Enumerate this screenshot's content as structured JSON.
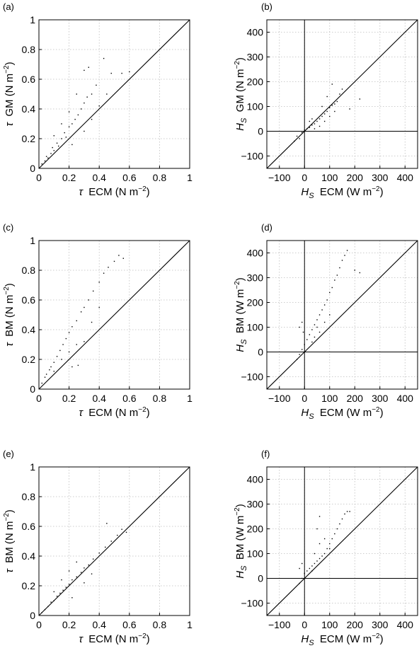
{
  "figure": {
    "panels": [
      "(a)",
      "(b)",
      "(c)",
      "(d)",
      "(e)",
      "(f)"
    ]
  },
  "chart_data": [
    {
      "panel": "(a)",
      "type": "scatter",
      "xlabel": "τ ECM (N m⁻²)",
      "ylabel": "τ GM (N m⁻²)",
      "xlim": [
        0,
        1
      ],
      "ylim": [
        0,
        1
      ],
      "xticks": [
        "0",
        "0.2",
        "0.4",
        "0.6",
        "0.8",
        "1"
      ],
      "yticks": [
        "0",
        "0.2",
        "0.4",
        "0.6",
        "0.8",
        "1"
      ],
      "grid": true,
      "reference_line": "1:1",
      "points": [
        [
          0.02,
          0.03
        ],
        [
          0.04,
          0.05
        ],
        [
          0.05,
          0.08
        ],
        [
          0.06,
          0.07
        ],
        [
          0.08,
          0.1
        ],
        [
          0.09,
          0.14
        ],
        [
          0.1,
          0.12
        ],
        [
          0.12,
          0.17
        ],
        [
          0.13,
          0.15
        ],
        [
          0.15,
          0.2
        ],
        [
          0.17,
          0.24
        ],
        [
          0.18,
          0.21
        ],
        [
          0.2,
          0.28
        ],
        [
          0.22,
          0.3
        ],
        [
          0.24,
          0.33
        ],
        [
          0.26,
          0.36
        ],
        [
          0.28,
          0.4
        ],
        [
          0.3,
          0.44
        ],
        [
          0.32,
          0.48
        ],
        [
          0.35,
          0.5
        ],
        [
          0.38,
          0.56
        ],
        [
          0.3,
          0.66
        ],
        [
          0.33,
          0.68
        ],
        [
          0.43,
          0.74
        ],
        [
          0.48,
          0.64
        ],
        [
          0.55,
          0.64
        ],
        [
          0.6,
          0.65
        ],
        [
          0.25,
          0.5
        ],
        [
          0.2,
          0.38
        ],
        [
          0.15,
          0.3
        ],
        [
          0.1,
          0.22
        ],
        [
          0.3,
          0.25
        ],
        [
          0.4,
          0.42
        ],
        [
          0.45,
          0.5
        ],
        [
          0.22,
          0.16
        ],
        [
          0.35,
          0.33
        ]
      ]
    },
    {
      "panel": "(b)",
      "type": "scatter",
      "xlabel": "H_S ECM (W m⁻²)",
      "ylabel": "H_S GM (N m⁻²)",
      "xlim": [
        -150,
        450
      ],
      "ylim": [
        -150,
        450
      ],
      "xticks": [
        "−100",
        "0",
        "100",
        "200",
        "300",
        "400"
      ],
      "yticks": [
        "−100",
        "0",
        "100",
        "200",
        "300",
        "400"
      ],
      "grid": true,
      "reference_line": "1:1",
      "points": [
        [
          -40,
          -40
        ],
        [
          -30,
          -20
        ],
        [
          -20,
          -30
        ],
        [
          -10,
          -5
        ],
        [
          0,
          5
        ],
        [
          10,
          10
        ],
        [
          20,
          15
        ],
        [
          30,
          25
        ],
        [
          40,
          30
        ],
        [
          50,
          40
        ],
        [
          60,
          50
        ],
        [
          70,
          60
        ],
        [
          80,
          70
        ],
        [
          90,
          80
        ],
        [
          100,
          95
        ],
        [
          110,
          105
        ],
        [
          120,
          110
        ],
        [
          130,
          120
        ],
        [
          140,
          150
        ],
        [
          110,
          190
        ],
        [
          150,
          170
        ],
        [
          220,
          130
        ],
        [
          180,
          90
        ],
        [
          60,
          20
        ],
        [
          40,
          10
        ],
        [
          80,
          40
        ],
        [
          100,
          60
        ],
        [
          30,
          50
        ],
        [
          20,
          40
        ],
        [
          70,
          100
        ],
        [
          90,
          140
        ],
        [
          120,
          80
        ]
      ]
    },
    {
      "panel": "(c)",
      "type": "scatter",
      "xlabel": "τ ECM (N m⁻²)",
      "ylabel": "τ BM (N m⁻²)",
      "xlim": [
        0,
        1
      ],
      "ylim": [
        0,
        1
      ],
      "xticks": [
        "0",
        "0.2",
        "0.4",
        "0.6",
        "0.8",
        "1"
      ],
      "yticks": [
        "0",
        "0.2",
        "0.4",
        "0.6",
        "0.8",
        "1"
      ],
      "grid": true,
      "reference_line": "1:1",
      "points": [
        [
          0.02,
          0.04
        ],
        [
          0.04,
          0.08
        ],
        [
          0.05,
          0.1
        ],
        [
          0.07,
          0.13
        ],
        [
          0.08,
          0.15
        ],
        [
          0.1,
          0.18
        ],
        [
          0.12,
          0.22
        ],
        [
          0.14,
          0.26
        ],
        [
          0.16,
          0.3
        ],
        [
          0.18,
          0.34
        ],
        [
          0.2,
          0.38
        ],
        [
          0.22,
          0.42
        ],
        [
          0.25,
          0.46
        ],
        [
          0.28,
          0.52
        ],
        [
          0.3,
          0.55
        ],
        [
          0.33,
          0.6
        ],
        [
          0.36,
          0.66
        ],
        [
          0.4,
          0.72
        ],
        [
          0.43,
          0.78
        ],
        [
          0.46,
          0.82
        ],
        [
          0.5,
          0.86
        ],
        [
          0.53,
          0.9
        ],
        [
          0.56,
          0.88
        ],
        [
          0.2,
          0.25
        ],
        [
          0.25,
          0.3
        ],
        [
          0.3,
          0.32
        ],
        [
          0.26,
          0.16
        ],
        [
          0.22,
          0.15
        ],
        [
          0.35,
          0.45
        ],
        [
          0.4,
          0.55
        ],
        [
          0.15,
          0.2
        ],
        [
          0.1,
          0.12
        ]
      ]
    },
    {
      "panel": "(d)",
      "type": "scatter",
      "xlabel": "H_S ECM (W m⁻²)",
      "ylabel": "H_S BM (W m⁻²)",
      "xlim": [
        -150,
        450
      ],
      "ylim": [
        -150,
        450
      ],
      "xticks": [
        "−100",
        "0",
        "100",
        "200",
        "300",
        "400"
      ],
      "yticks": [
        "−100",
        "0",
        "100",
        "200",
        "300",
        "400"
      ],
      "grid": true,
      "reference_line": "1:1",
      "points": [
        [
          -30,
          -30
        ],
        [
          -20,
          -10
        ],
        [
          -10,
          10
        ],
        [
          0,
          30
        ],
        [
          10,
          50
        ],
        [
          20,
          70
        ],
        [
          30,
          90
        ],
        [
          40,
          110
        ],
        [
          50,
          130
        ],
        [
          60,
          150
        ],
        [
          70,
          170
        ],
        [
          80,
          190
        ],
        [
          90,
          210
        ],
        [
          100,
          240
        ],
        [
          110,
          260
        ],
        [
          120,
          290
        ],
        [
          130,
          310
        ],
        [
          140,
          340
        ],
        [
          150,
          370
        ],
        [
          160,
          390
        ],
        [
          170,
          410
        ],
        [
          200,
          330
        ],
        [
          220,
          320
        ],
        [
          -10,
          120
        ],
        [
          -20,
          100
        ],
        [
          -5,
          80
        ],
        [
          40,
          60
        ],
        [
          60,
          80
        ],
        [
          80,
          120
        ],
        [
          100,
          150
        ],
        [
          30,
          40
        ],
        [
          50,
          100
        ]
      ]
    },
    {
      "panel": "(e)",
      "type": "scatter",
      "xlabel": "τ ECM (N m⁻²)",
      "ylabel": "τ BM (N m⁻²)",
      "xlim": [
        0,
        1
      ],
      "ylim": [
        0,
        1
      ],
      "xticks": [
        "0",
        "0.2",
        "0.4",
        "0.6",
        "0.8",
        "1"
      ],
      "yticks": [
        "0",
        "0.2",
        "0.4",
        "0.6",
        "0.8",
        "1"
      ],
      "grid": true,
      "reference_line": "1:1",
      "points": [
        [
          0.02,
          0.02
        ],
        [
          0.04,
          0.04
        ],
        [
          0.06,
          0.06
        ],
        [
          0.08,
          0.09
        ],
        [
          0.1,
          0.1
        ],
        [
          0.12,
          0.13
        ],
        [
          0.14,
          0.15
        ],
        [
          0.16,
          0.17
        ],
        [
          0.18,
          0.19
        ],
        [
          0.2,
          0.21
        ],
        [
          0.22,
          0.24
        ],
        [
          0.25,
          0.26
        ],
        [
          0.28,
          0.29
        ],
        [
          0.3,
          0.32
        ],
        [
          0.33,
          0.34
        ],
        [
          0.36,
          0.38
        ],
        [
          0.4,
          0.42
        ],
        [
          0.44,
          0.46
        ],
        [
          0.48,
          0.5
        ],
        [
          0.52,
          0.54
        ],
        [
          0.55,
          0.58
        ],
        [
          0.58,
          0.56
        ],
        [
          0.45,
          0.62
        ],
        [
          0.2,
          0.3
        ],
        [
          0.25,
          0.36
        ],
        [
          0.15,
          0.24
        ],
        [
          0.22,
          0.12
        ],
        [
          0.3,
          0.22
        ],
        [
          0.35,
          0.28
        ],
        [
          0.1,
          0.16
        ]
      ]
    },
    {
      "panel": "(f)",
      "type": "scatter",
      "xlabel": "H_S ECM (W m⁻²)",
      "ylabel": "H_S BM (W m⁻²)",
      "xlim": [
        -150,
        450
      ],
      "ylim": [
        -150,
        450
      ],
      "xticks": [
        "−100",
        "0",
        "100",
        "200",
        "300",
        "400"
      ],
      "yticks": [
        "−100",
        "0",
        "100",
        "200",
        "300",
        "400"
      ],
      "grid": true,
      "reference_line": "1:1",
      "points": [
        [
          -20,
          -20
        ],
        [
          -10,
          0
        ],
        [
          0,
          20
        ],
        [
          10,
          30
        ],
        [
          20,
          40
        ],
        [
          30,
          50
        ],
        [
          40,
          60
        ],
        [
          50,
          70
        ],
        [
          60,
          80
        ],
        [
          70,
          90
        ],
        [
          80,
          100
        ],
        [
          90,
          120
        ],
        [
          100,
          140
        ],
        [
          110,
          160
        ],
        [
          120,
          180
        ],
        [
          130,
          200
        ],
        [
          140,
          220
        ],
        [
          150,
          240
        ],
        [
          160,
          260
        ],
        [
          170,
          270
        ],
        [
          180,
          270
        ],
        [
          -10,
          60
        ],
        [
          -20,
          40
        ],
        [
          40,
          100
        ],
        [
          60,
          140
        ],
        [
          80,
          160
        ],
        [
          100,
          120
        ],
        [
          50,
          200
        ],
        [
          60,
          250
        ],
        [
          30,
          30
        ]
      ]
    }
  ]
}
